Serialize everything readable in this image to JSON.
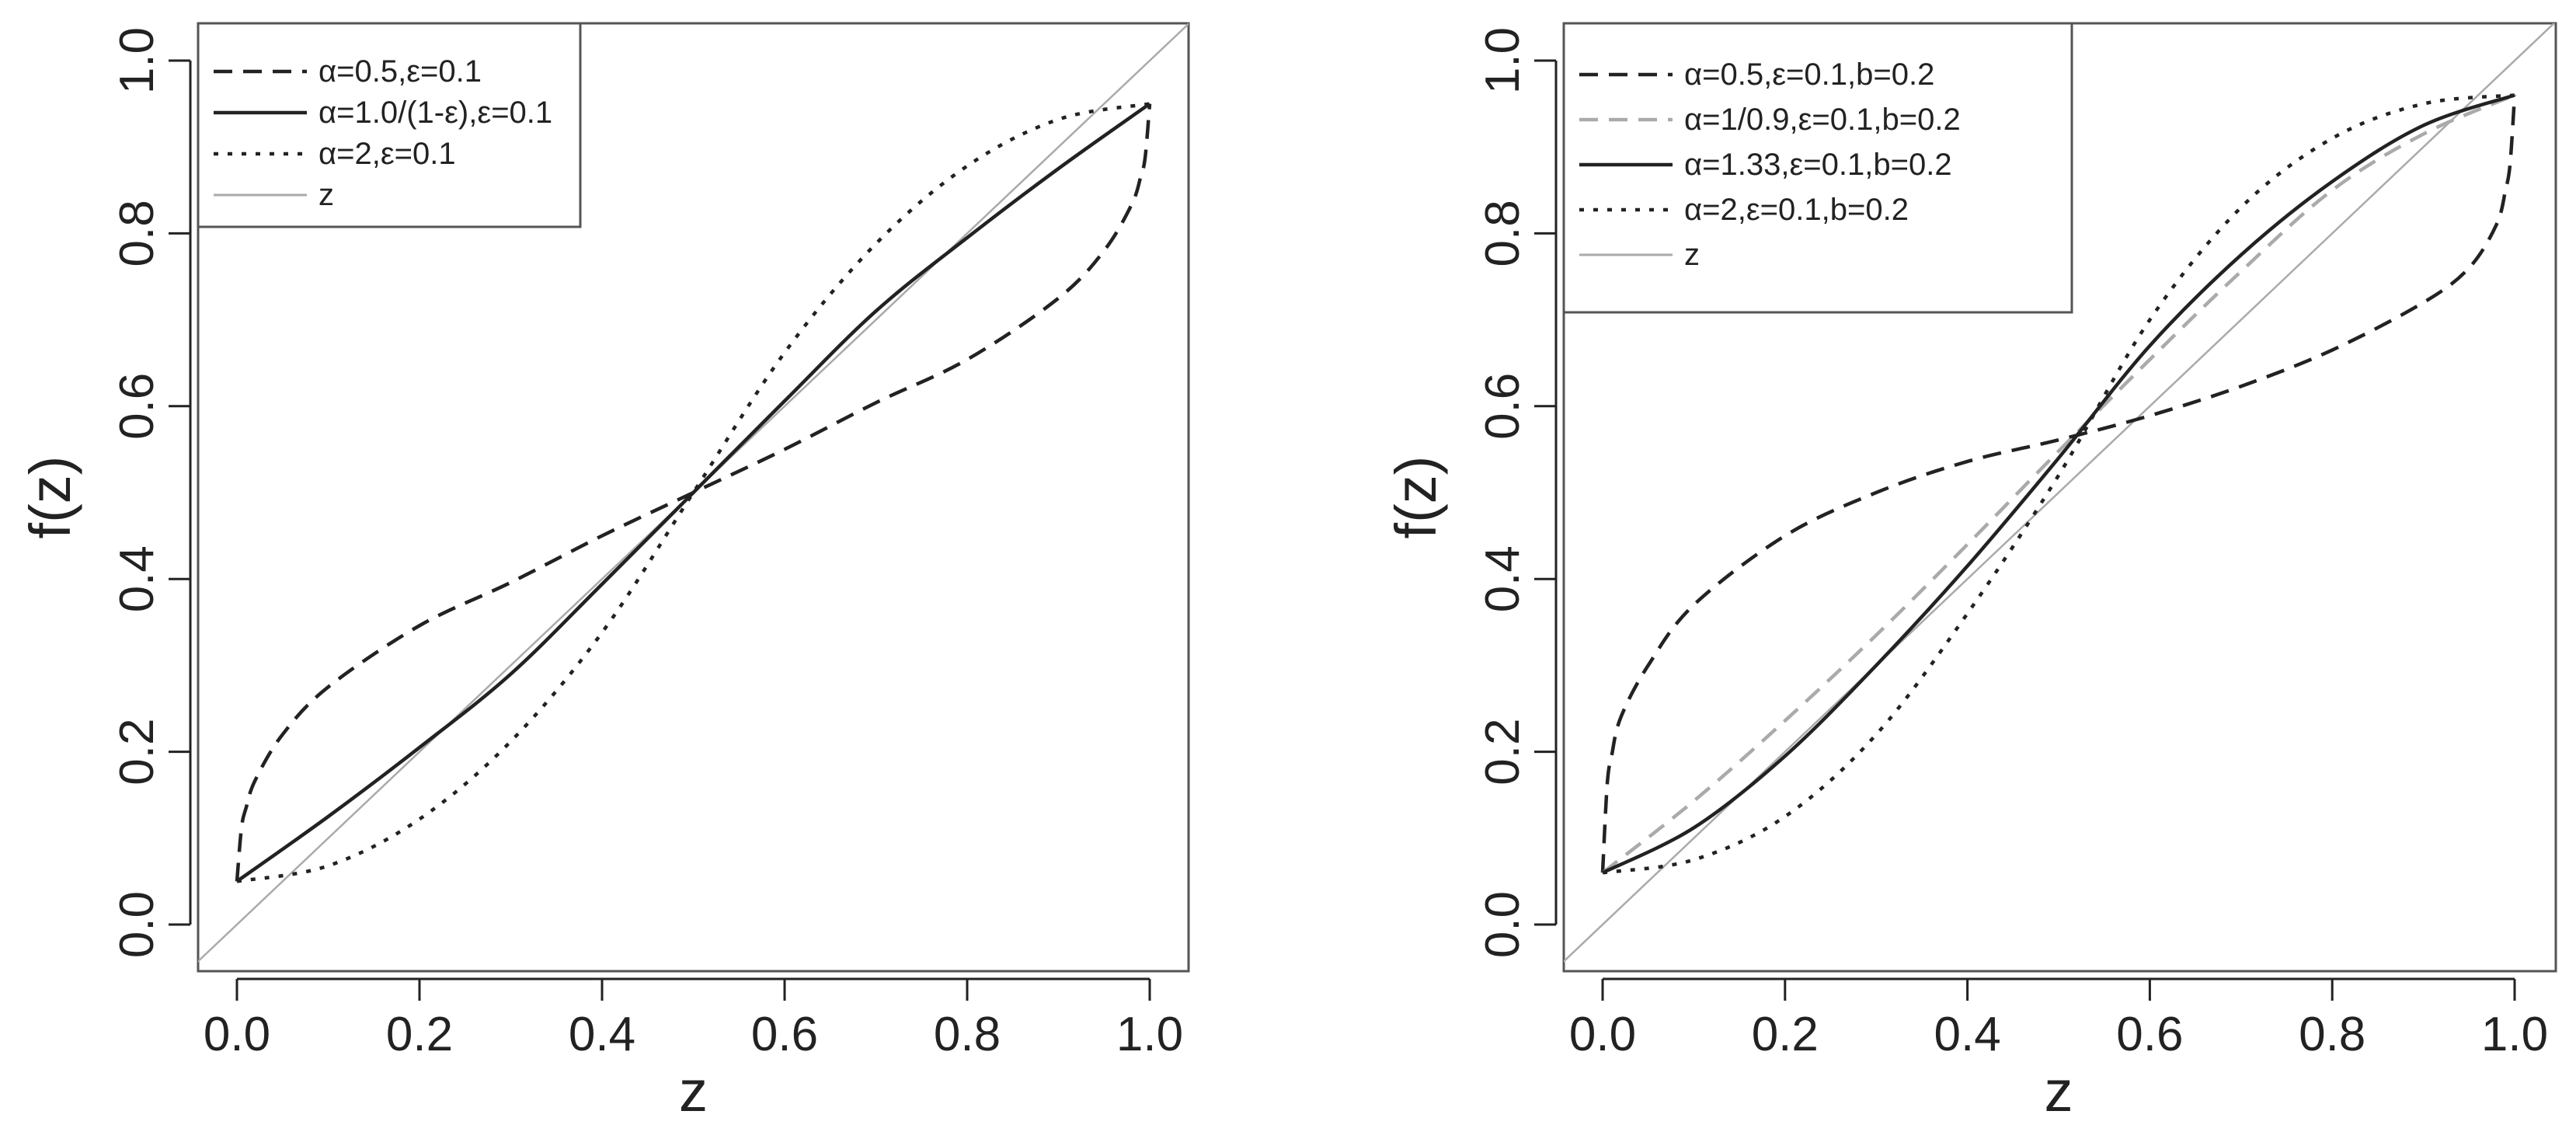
{
  "chart_data": [
    {
      "type": "line",
      "xlabel": "z",
      "ylabel": "f(z)",
      "xlim": [
        0,
        1
      ],
      "ylim": [
        0,
        1
      ],
      "xticks": [
        "0.0",
        "0.2",
        "0.4",
        "0.6",
        "0.8",
        "1.0"
      ],
      "yticks": [
        "0.0",
        "0.2",
        "0.4",
        "0.6",
        "0.8",
        "1.0"
      ],
      "legend_position": "top-left",
      "series": [
        {
          "name": "α=0.5,ε=0.1",
          "style": "dashed",
          "color": "#222222",
          "x": [
            0,
            0.005,
            0.01,
            0.02,
            0.05,
            0.1,
            0.2,
            0.3,
            0.4,
            0.5,
            0.6,
            0.7,
            0.8,
            0.9,
            0.95,
            0.98,
            0.99,
            0.995,
            1
          ],
          "y": [
            0.05,
            0.112,
            0.135,
            0.167,
            0.22,
            0.275,
            0.346,
            0.396,
            0.45,
            0.5,
            0.55,
            0.604,
            0.654,
            0.725,
            0.78,
            0.833,
            0.865,
            0.888,
            0.95
          ]
        },
        {
          "name": "α=1.0/(1-ε),ε=0.1",
          "style": "solid",
          "color": "#222222",
          "x": [
            0,
            0.1,
            0.2,
            0.3,
            0.4,
            0.5,
            0.6,
            0.7,
            0.8,
            0.9,
            1
          ],
          "y": [
            0.05,
            0.125,
            0.205,
            0.29,
            0.394,
            0.5,
            0.606,
            0.71,
            0.795,
            0.875,
            0.95
          ]
        },
        {
          "name": "α=2,ε=0.1",
          "style": "dotted",
          "color": "#222222",
          "x": [
            0,
            0.1,
            0.2,
            0.3,
            0.4,
            0.5,
            0.6,
            0.7,
            0.8,
            0.9,
            1
          ],
          "y": [
            0.05,
            0.068,
            0.122,
            0.212,
            0.338,
            0.5,
            0.662,
            0.788,
            0.878,
            0.932,
            0.95
          ]
        },
        {
          "name": "z",
          "style": "solid",
          "color": "#aaaaaa",
          "x": [
            0,
            1
          ],
          "y": [
            0,
            1
          ]
        }
      ]
    },
    {
      "type": "line",
      "xlabel": "z",
      "ylabel": "f(z)",
      "xlim": [
        0,
        1
      ],
      "ylim": [
        0,
        1
      ],
      "xticks": [
        "0.0",
        "0.2",
        "0.4",
        "0.6",
        "0.8",
        "1.0"
      ],
      "yticks": [
        "0.0",
        "0.2",
        "0.4",
        "0.6",
        "0.8",
        "1.0"
      ],
      "legend_position": "top-left",
      "series": [
        {
          "name": "α=0.5,ε=0.1,b=0.2",
          "style": "dashed",
          "color": "#222222",
          "x": [
            0,
            0.005,
            0.01,
            0.02,
            0.05,
            0.1,
            0.2,
            0.3,
            0.4,
            0.5,
            0.6,
            0.7,
            0.8,
            0.9,
            0.95,
            0.98,
            0.99,
            0.995,
            1
          ],
          "y": [
            0.06,
            0.162,
            0.196,
            0.24,
            0.3,
            0.37,
            0.45,
            0.5,
            0.536,
            0.561,
            0.589,
            0.623,
            0.665,
            0.72,
            0.76,
            0.81,
            0.85,
            0.88,
            0.96
          ]
        },
        {
          "name": "α=1/0.9,ε=0.1,b=0.2",
          "style": "dashed",
          "color": "#aaaaaa",
          "x": [
            0,
            0.1,
            0.2,
            0.3,
            0.4,
            0.5,
            0.6,
            0.7,
            0.8,
            0.9,
            1
          ],
          "y": [
            0.06,
            0.143,
            0.236,
            0.335,
            0.44,
            0.548,
            0.654,
            0.756,
            0.85,
            0.915,
            0.96
          ]
        },
        {
          "name": "α=1.33,ε=0.1,b=0.2",
          "style": "solid",
          "color": "#222222",
          "x": [
            0,
            0.1,
            0.2,
            0.3,
            0.4,
            0.5,
            0.6,
            0.7,
            0.8,
            0.9,
            1
          ],
          "y": [
            0.06,
            0.112,
            0.195,
            0.3,
            0.415,
            0.54,
            0.67,
            0.775,
            0.86,
            0.925,
            0.96
          ]
        },
        {
          "name": "α=2,ε=0.1,b=0.2",
          "style": "dotted",
          "color": "#222222",
          "x": [
            0,
            0.1,
            0.2,
            0.3,
            0.4,
            0.5,
            0.6,
            0.7,
            0.8,
            0.9,
            1
          ],
          "y": [
            0.06,
            0.075,
            0.125,
            0.22,
            0.36,
            0.52,
            0.7,
            0.83,
            0.91,
            0.95,
            0.96
          ]
        },
        {
          "name": "z",
          "style": "solid",
          "color": "#aaaaaa",
          "x": [
            0,
            1
          ],
          "y": [
            0,
            1
          ]
        }
      ]
    }
  ]
}
